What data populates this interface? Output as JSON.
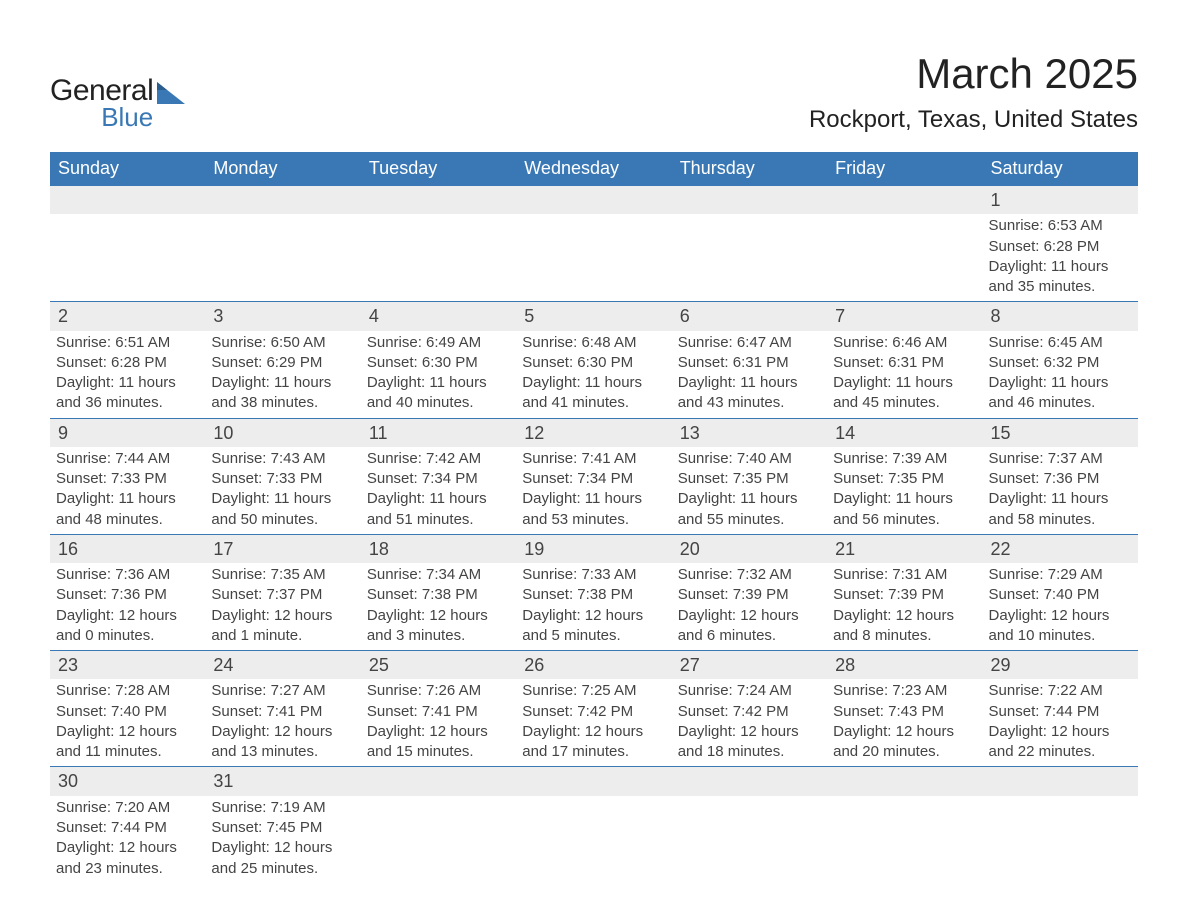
{
  "logo": {
    "general": "General",
    "blue": "Blue"
  },
  "title": "March 2025",
  "location": "Rockport, Texas, United States",
  "colors": {
    "header_bg": "#3a78b5",
    "header_text": "#ffffff",
    "daynum_bg": "#ededed",
    "text": "#444444",
    "logo_blue": "#3a78b5"
  },
  "typography": {
    "title_fontsize": 42,
    "location_fontsize": 24,
    "header_fontsize": 18,
    "daynum_fontsize": 18,
    "body_fontsize": 15
  },
  "dayNames": [
    "Sunday",
    "Monday",
    "Tuesday",
    "Wednesday",
    "Thursday",
    "Friday",
    "Saturday"
  ],
  "weeks": [
    [
      null,
      null,
      null,
      null,
      null,
      null,
      {
        "n": "1",
        "sunrise": "Sunrise: 6:53 AM",
        "sunset": "Sunset: 6:28 PM",
        "d1": "Daylight: 11 hours",
        "d2": "and 35 minutes."
      }
    ],
    [
      {
        "n": "2",
        "sunrise": "Sunrise: 6:51 AM",
        "sunset": "Sunset: 6:28 PM",
        "d1": "Daylight: 11 hours",
        "d2": "and 36 minutes."
      },
      {
        "n": "3",
        "sunrise": "Sunrise: 6:50 AM",
        "sunset": "Sunset: 6:29 PM",
        "d1": "Daylight: 11 hours",
        "d2": "and 38 minutes."
      },
      {
        "n": "4",
        "sunrise": "Sunrise: 6:49 AM",
        "sunset": "Sunset: 6:30 PM",
        "d1": "Daylight: 11 hours",
        "d2": "and 40 minutes."
      },
      {
        "n": "5",
        "sunrise": "Sunrise: 6:48 AM",
        "sunset": "Sunset: 6:30 PM",
        "d1": "Daylight: 11 hours",
        "d2": "and 41 minutes."
      },
      {
        "n": "6",
        "sunrise": "Sunrise: 6:47 AM",
        "sunset": "Sunset: 6:31 PM",
        "d1": "Daylight: 11 hours",
        "d2": "and 43 minutes."
      },
      {
        "n": "7",
        "sunrise": "Sunrise: 6:46 AM",
        "sunset": "Sunset: 6:31 PM",
        "d1": "Daylight: 11 hours",
        "d2": "and 45 minutes."
      },
      {
        "n": "8",
        "sunrise": "Sunrise: 6:45 AM",
        "sunset": "Sunset: 6:32 PM",
        "d1": "Daylight: 11 hours",
        "d2": "and 46 minutes."
      }
    ],
    [
      {
        "n": "9",
        "sunrise": "Sunrise: 7:44 AM",
        "sunset": "Sunset: 7:33 PM",
        "d1": "Daylight: 11 hours",
        "d2": "and 48 minutes."
      },
      {
        "n": "10",
        "sunrise": "Sunrise: 7:43 AM",
        "sunset": "Sunset: 7:33 PM",
        "d1": "Daylight: 11 hours",
        "d2": "and 50 minutes."
      },
      {
        "n": "11",
        "sunrise": "Sunrise: 7:42 AM",
        "sunset": "Sunset: 7:34 PM",
        "d1": "Daylight: 11 hours",
        "d2": "and 51 minutes."
      },
      {
        "n": "12",
        "sunrise": "Sunrise: 7:41 AM",
        "sunset": "Sunset: 7:34 PM",
        "d1": "Daylight: 11 hours",
        "d2": "and 53 minutes."
      },
      {
        "n": "13",
        "sunrise": "Sunrise: 7:40 AM",
        "sunset": "Sunset: 7:35 PM",
        "d1": "Daylight: 11 hours",
        "d2": "and 55 minutes."
      },
      {
        "n": "14",
        "sunrise": "Sunrise: 7:39 AM",
        "sunset": "Sunset: 7:35 PM",
        "d1": "Daylight: 11 hours",
        "d2": "and 56 minutes."
      },
      {
        "n": "15",
        "sunrise": "Sunrise: 7:37 AM",
        "sunset": "Sunset: 7:36 PM",
        "d1": "Daylight: 11 hours",
        "d2": "and 58 minutes."
      }
    ],
    [
      {
        "n": "16",
        "sunrise": "Sunrise: 7:36 AM",
        "sunset": "Sunset: 7:36 PM",
        "d1": "Daylight: 12 hours",
        "d2": "and 0 minutes."
      },
      {
        "n": "17",
        "sunrise": "Sunrise: 7:35 AM",
        "sunset": "Sunset: 7:37 PM",
        "d1": "Daylight: 12 hours",
        "d2": "and 1 minute."
      },
      {
        "n": "18",
        "sunrise": "Sunrise: 7:34 AM",
        "sunset": "Sunset: 7:38 PM",
        "d1": "Daylight: 12 hours",
        "d2": "and 3 minutes."
      },
      {
        "n": "19",
        "sunrise": "Sunrise: 7:33 AM",
        "sunset": "Sunset: 7:38 PM",
        "d1": "Daylight: 12 hours",
        "d2": "and 5 minutes."
      },
      {
        "n": "20",
        "sunrise": "Sunrise: 7:32 AM",
        "sunset": "Sunset: 7:39 PM",
        "d1": "Daylight: 12 hours",
        "d2": "and 6 minutes."
      },
      {
        "n": "21",
        "sunrise": "Sunrise: 7:31 AM",
        "sunset": "Sunset: 7:39 PM",
        "d1": "Daylight: 12 hours",
        "d2": "and 8 minutes."
      },
      {
        "n": "22",
        "sunrise": "Sunrise: 7:29 AM",
        "sunset": "Sunset: 7:40 PM",
        "d1": "Daylight: 12 hours",
        "d2": "and 10 minutes."
      }
    ],
    [
      {
        "n": "23",
        "sunrise": "Sunrise: 7:28 AM",
        "sunset": "Sunset: 7:40 PM",
        "d1": "Daylight: 12 hours",
        "d2": "and 11 minutes."
      },
      {
        "n": "24",
        "sunrise": "Sunrise: 7:27 AM",
        "sunset": "Sunset: 7:41 PM",
        "d1": "Daylight: 12 hours",
        "d2": "and 13 minutes."
      },
      {
        "n": "25",
        "sunrise": "Sunrise: 7:26 AM",
        "sunset": "Sunset: 7:41 PM",
        "d1": "Daylight: 12 hours",
        "d2": "and 15 minutes."
      },
      {
        "n": "26",
        "sunrise": "Sunrise: 7:25 AM",
        "sunset": "Sunset: 7:42 PM",
        "d1": "Daylight: 12 hours",
        "d2": "and 17 minutes."
      },
      {
        "n": "27",
        "sunrise": "Sunrise: 7:24 AM",
        "sunset": "Sunset: 7:42 PM",
        "d1": "Daylight: 12 hours",
        "d2": "and 18 minutes."
      },
      {
        "n": "28",
        "sunrise": "Sunrise: 7:23 AM",
        "sunset": "Sunset: 7:43 PM",
        "d1": "Daylight: 12 hours",
        "d2": "and 20 minutes."
      },
      {
        "n": "29",
        "sunrise": "Sunrise: 7:22 AM",
        "sunset": "Sunset: 7:44 PM",
        "d1": "Daylight: 12 hours",
        "d2": "and 22 minutes."
      }
    ],
    [
      {
        "n": "30",
        "sunrise": "Sunrise: 7:20 AM",
        "sunset": "Sunset: 7:44 PM",
        "d1": "Daylight: 12 hours",
        "d2": "and 23 minutes."
      },
      {
        "n": "31",
        "sunrise": "Sunrise: 7:19 AM",
        "sunset": "Sunset: 7:45 PM",
        "d1": "Daylight: 12 hours",
        "d2": "and 25 minutes."
      },
      null,
      null,
      null,
      null,
      null
    ]
  ]
}
